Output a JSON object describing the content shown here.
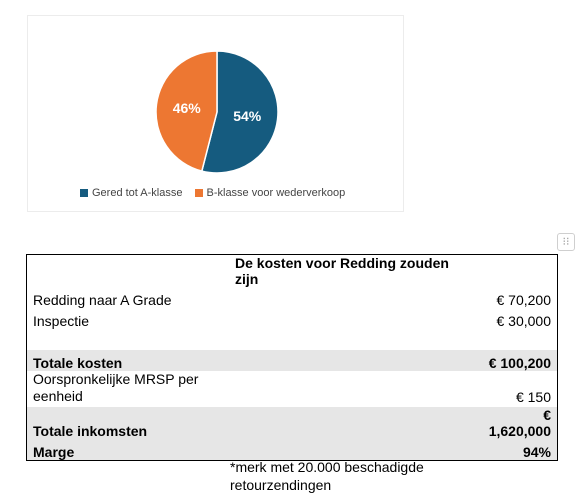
{
  "chart_data": {
    "type": "pie",
    "categories": [
      "Gered tot A-klasse",
      "B-klasse voor wederverkoop"
    ],
    "values": [
      54,
      46
    ],
    "labels": [
      "54%",
      "46%"
    ],
    "colors": [
      "#155b7f",
      "#ed7732"
    ],
    "legend": "bottom"
  },
  "table": {
    "header": "De kosten voor Redding zouden zijn",
    "rows": [
      {
        "label": "Redding naar A Grade",
        "value": "€ 70,200"
      },
      {
        "label": "Inspectie",
        "value": "€ 30,000"
      },
      {
        "label": "",
        "value": ""
      },
      {
        "label": "Totale kosten",
        "value": "€ 100,200"
      },
      {
        "label": "Oorspronkelijke MRSP per eenheid",
        "value": "€ 150"
      },
      {
        "label": "Totale inkomsten",
        "value": "€ 1,620,000"
      },
      {
        "label": "Marge",
        "value": "94%"
      }
    ]
  },
  "note": "*merk met 20.000 beschadigde retourzendingen",
  "handle_icon": "drag-grid-icon"
}
